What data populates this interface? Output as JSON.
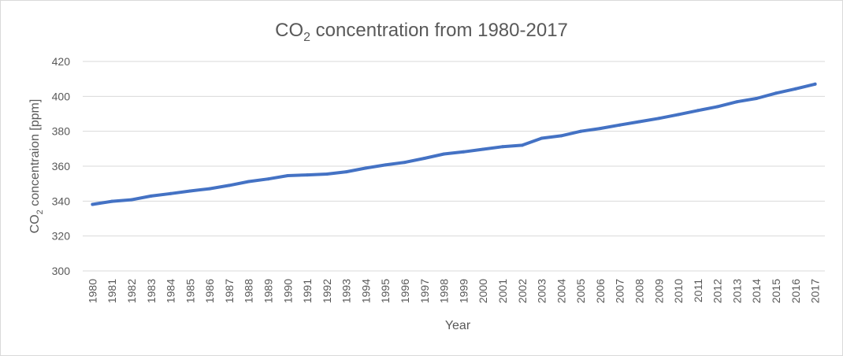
{
  "chart_data": {
    "type": "line",
    "title": {
      "prefix": "CO",
      "sub": "2",
      "suffix": " concentration from 1980-2017"
    },
    "xlabel": "Year",
    "ylabel": {
      "prefix": "CO",
      "sub": "2",
      "suffix": " concentraion [ppm]"
    },
    "ylim": [
      300,
      420
    ],
    "yticks": [
      300,
      320,
      340,
      360,
      380,
      400,
      420
    ],
    "grid": true,
    "legend": "none",
    "categories": [
      "1980",
      "1981",
      "1982",
      "1983",
      "1984",
      "1985",
      "1986",
      "1987",
      "1988",
      "1989",
      "1990",
      "1991",
      "1992",
      "1993",
      "1994",
      "1995",
      "1996",
      "1997",
      "1998",
      "1999",
      "2000",
      "2001",
      "2002",
      "2003",
      "2004",
      "2005",
      "2006",
      "2007",
      "2008",
      "2009",
      "2010",
      "2011",
      "2012",
      "2013",
      "2014",
      "2015",
      "2016",
      "2017"
    ],
    "series": [
      {
        "color": "#4472c4",
        "values": [
          338.1,
          339.9,
          340.8,
          342.9,
          344.3,
          345.8,
          347.1,
          349.0,
          351.2,
          352.7,
          354.6,
          355.0,
          355.5,
          356.8,
          358.9,
          360.7,
          362.2,
          364.5,
          367.0,
          368.2,
          369.7,
          371.2,
          372.0,
          376.0,
          377.4,
          380.0,
          381.6,
          383.6,
          385.5,
          387.4,
          389.6,
          391.9,
          394.1,
          396.9,
          398.8,
          401.8,
          404.3,
          407.0
        ]
      }
    ]
  }
}
